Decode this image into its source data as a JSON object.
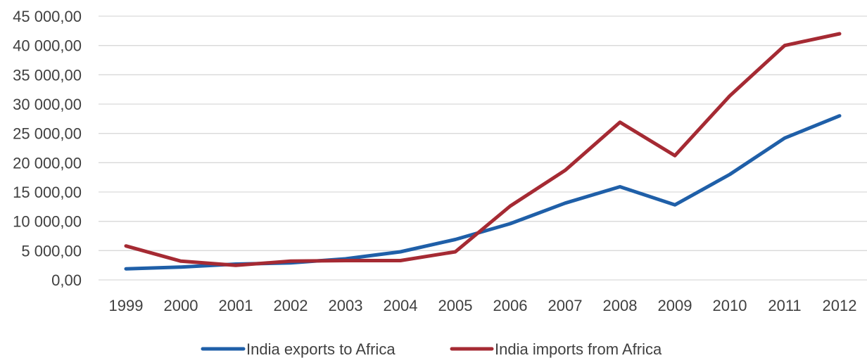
{
  "chart_data": {
    "type": "line",
    "categories": [
      "1999",
      "2000",
      "2001",
      "2002",
      "2003",
      "2004",
      "2005",
      "2006",
      "2007",
      "2008",
      "2009",
      "2010",
      "2011",
      "2012"
    ],
    "series": [
      {
        "name": "India exports to Africa",
        "color": "#1f5fa8",
        "values": [
          1900,
          2200,
          2700,
          2900,
          3600,
          4800,
          6900,
          9600,
          13100,
          15900,
          12800,
          18000,
          24200,
          28000
        ]
      },
      {
        "name": "India imports from Africa",
        "color": "#a52a33",
        "values": [
          5800,
          3200,
          2500,
          3200,
          3300,
          3300,
          4800,
          12600,
          18700,
          26900,
          21200,
          31400,
          40000,
          42000
        ]
      }
    ],
    "ylim": [
      0,
      45000
    ],
    "yticks": [
      "0,00",
      "5 000,00",
      "10 000,00",
      "15 000,00",
      "20 000,00",
      "25 000,00",
      "30 000,00",
      "35 000,00",
      "40 000,00",
      "45 000,00"
    ],
    "grid": true,
    "legend": "bottom"
  }
}
